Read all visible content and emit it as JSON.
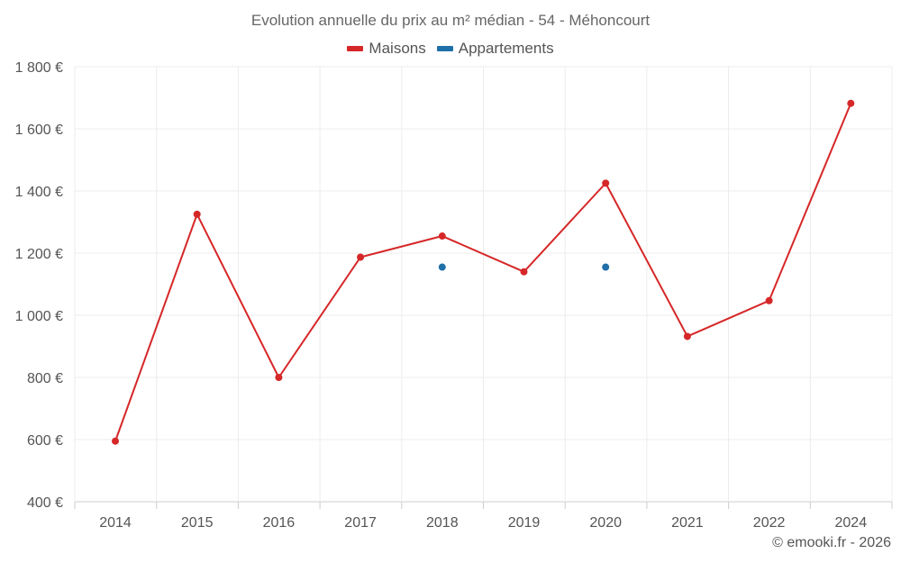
{
  "chart_data": {
    "type": "line",
    "title": "Evolution annuelle du prix au m² médian - 54 - Méhoncourt",
    "categories": [
      "2014",
      "2015",
      "2016",
      "2017",
      "2018",
      "2019",
      "2020",
      "2021",
      "2022",
      "2024"
    ],
    "ylim": [
      400,
      1800
    ],
    "yticks": [
      400,
      600,
      800,
      1000,
      1200,
      1400,
      1600,
      1800
    ],
    "ytick_labels": [
      "400 €",
      "600 €",
      "800 €",
      "1 000 €",
      "1 200 €",
      "1 400 €",
      "1 600 €",
      "1 800 €"
    ],
    "xlabel": "",
    "ylabel": "",
    "grid": true,
    "legend_position": "top-center",
    "series": [
      {
        "name": "Maisons",
        "color": "#d62728",
        "values": [
          595,
          1325,
          800,
          1187,
          1255,
          1140,
          1425,
          932,
          1047,
          1682
        ]
      },
      {
        "name": "Appartements",
        "color": "#1f6fa8",
        "values": [
          null,
          null,
          null,
          null,
          1155,
          null,
          1155,
          null,
          null,
          null
        ]
      }
    ]
  },
  "credit": "© emooki.fr - 2026"
}
